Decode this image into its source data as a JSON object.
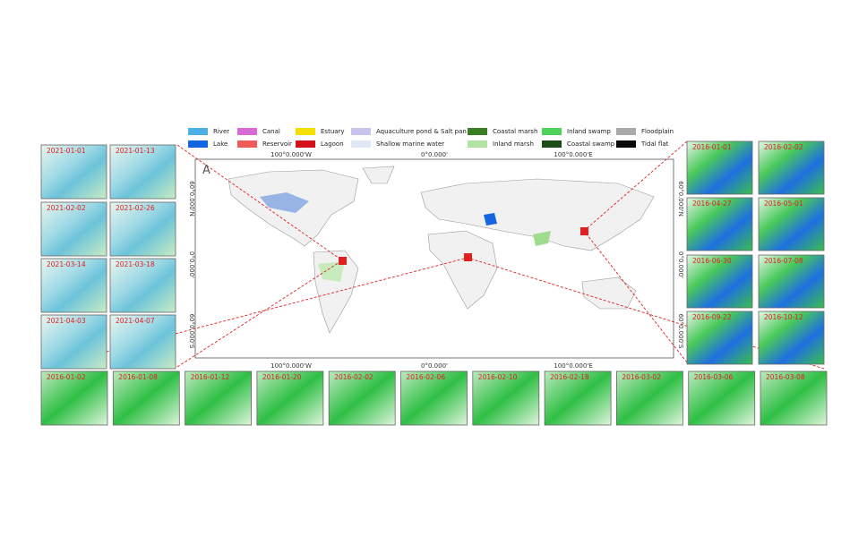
{
  "legend": [
    {
      "label": "River",
      "color": "#4fb0e6"
    },
    {
      "label": "Canal",
      "color": "#d66bd6"
    },
    {
      "label": "Estuary",
      "color": "#f5e000"
    },
    {
      "label": "Aquaculture pond & Salt pan",
      "color": "#c7c3ec"
    },
    {
      "label": "Coastal marsh",
      "color": "#3b7d23"
    },
    {
      "label": "Inland swamp",
      "color": "#4ed35a"
    },
    {
      "label": "Floodplain",
      "color": "#aaaaaa"
    },
    {
      "label": "Lake",
      "color": "#1466e0"
    },
    {
      "label": "Reservoir",
      "color": "#f05a5a"
    },
    {
      "label": "Lagoon",
      "color": "#d4101a"
    },
    {
      "label": "Shallow marine water",
      "color": "#dfe9f5"
    },
    {
      "label": "Inland marsh",
      "color": "#b3e3a3"
    },
    {
      "label": "Coastal swamp",
      "color": "#1d4d17"
    },
    {
      "label": "Tidal flat",
      "color": "#0a0a0a"
    }
  ],
  "panel_label": "A",
  "map": {
    "top_labels": [
      "100°0.000'W",
      "0°0.000'",
      "100°0.000'E"
    ],
    "bottom_labels": [
      "100°0.000'W",
      "0°0.000'",
      "100°0.000'E"
    ],
    "left_labels": [
      "60°0.000'N",
      "0°0.000'",
      "60°0.000'S"
    ],
    "right_labels": [
      "60°0.000'N",
      "0°0.000'",
      "60°0.000'S"
    ]
  },
  "left_thumbnails": [
    "2021-01-01",
    "2021-01-13",
    "2021-02-02",
    "2021-02-26",
    "2021-03-14",
    "2021-03-18",
    "2021-04-03",
    "2021-04-07"
  ],
  "right_thumbnails": [
    "2016-01-01",
    "2016-02-02",
    "2016-04-27",
    "2016-05-01",
    "2016-06-30",
    "2016-07-08",
    "2016-09-22",
    "2016-10-12"
  ],
  "bottom_thumbnails": [
    "2016-01-02",
    "2016-01-08",
    "2016-01-12",
    "2016-01-20",
    "2016-02-02",
    "2016-02-06",
    "2016-02-10",
    "2016-02-18",
    "2016-03-02",
    "2016-03-06",
    "2016-03-08"
  ]
}
